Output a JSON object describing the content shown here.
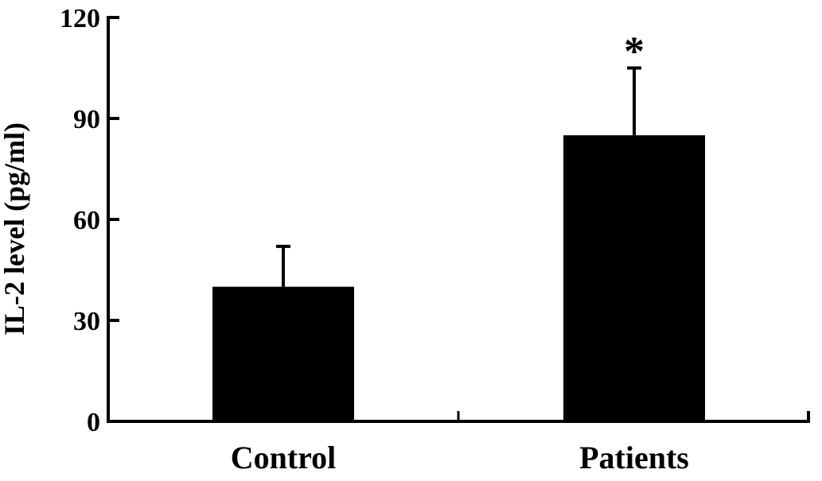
{
  "figure": {
    "background": "#ffffff",
    "ink": "#000000"
  },
  "chart_data": {
    "type": "bar",
    "title": "",
    "ylabel": "IL-2 level (pg/ml)",
    "xlabel": "",
    "categories": [
      "Control",
      "Patients"
    ],
    "series": [
      {
        "name": "IL-2 level (pg/ml)",
        "values": [
          40,
          85
        ],
        "errors": [
          12,
          20
        ],
        "error_direction": "up",
        "annotations": [
          "",
          "*"
        ]
      }
    ],
    "ylim": [
      0,
      120
    ],
    "yticks": [
      0,
      30,
      60,
      90,
      120
    ],
    "bar_color": "#000000",
    "error_color": "#000000",
    "axis_color": "#000000",
    "grid": false,
    "legend": "none",
    "significance_note": "* above Patients error bar"
  }
}
